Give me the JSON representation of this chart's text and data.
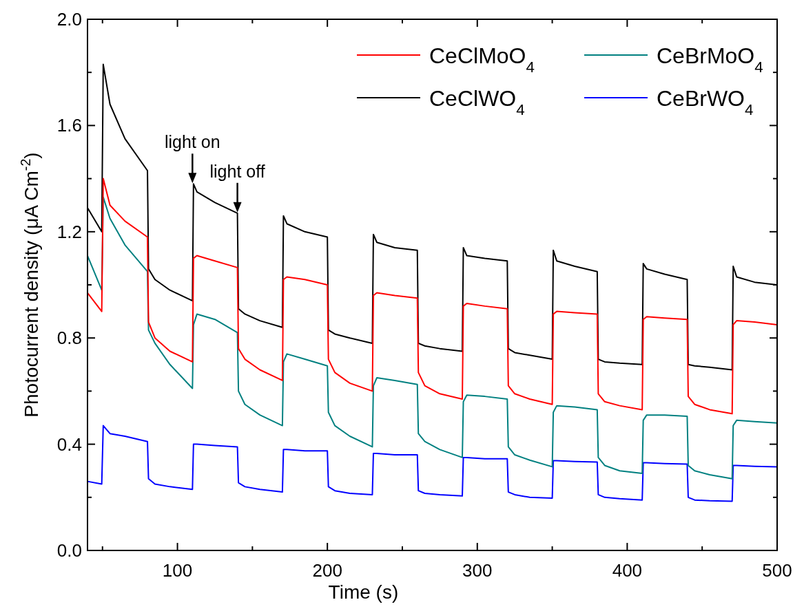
{
  "chart_data": {
    "type": "line",
    "xlabel": "Time (s)",
    "ylabel": "Photocurrent density (μA Cm$^{-2}$)",
    "xlim": [
      40,
      500
    ],
    "ylim": [
      0,
      2
    ],
    "xticks": [
      {
        "value": 50,
        "label": null
      },
      100,
      {
        "value": 150,
        "label": null
      },
      200,
      {
        "value": 250,
        "label": null
      },
      300,
      {
        "value": 350,
        "label": null
      },
      400,
      {
        "value": 450,
        "label": null
      },
      500
    ],
    "yticks": [
      {
        "value": 0,
        "label": "0.0"
      },
      {
        "value": 0.2,
        "label": null
      },
      {
        "value": 0.4,
        "label": "0.4"
      },
      {
        "value": 0.6,
        "label": null
      },
      {
        "value": 0.8,
        "label": "0.8"
      },
      {
        "value": 1,
        "label": null
      },
      {
        "value": 1.2,
        "label": "1.2"
      },
      {
        "value": 1.4,
        "label": null
      },
      {
        "value": 1.6,
        "label": "1.6"
      },
      {
        "value": 1.8,
        "label": null
      },
      {
        "value": 2,
        "label": "2.0"
      }
    ],
    "grid": false,
    "legend": "top right",
    "marker": "none",
    "line_style": "solid",
    "x": [
      40,
      49.5,
      50.5,
      55,
      65,
      80,
      80.7,
      85,
      95,
      110,
      110.7,
      113,
      125,
      140,
      140.7,
      145,
      155,
      170,
      170.7,
      173,
      185,
      200,
      200.7,
      205,
      215,
      230,
      230.7,
      233,
      245,
      260,
      260.7,
      265,
      275,
      290,
      290.7,
      293,
      305,
      320,
      320.7,
      325,
      335,
      350,
      350.7,
      353,
      365,
      380,
      380.7,
      385,
      395,
      410,
      410.7,
      413,
      425,
      440,
      440.7,
      445,
      455,
      470,
      470.7,
      473,
      485,
      500
    ],
    "series": [
      {
        "name": "CeClMoO$_{4}$",
        "color": "#ff0000",
        "values": [
          0.97,
          0.9,
          1.4,
          1.3,
          1.24,
          1.18,
          0.86,
          0.8,
          0.75,
          0.71,
          1.1,
          1.11,
          1.09,
          1.065,
          0.76,
          0.72,
          0.68,
          0.64,
          1.02,
          1.03,
          1.02,
          1.0,
          0.72,
          0.67,
          0.63,
          0.6,
          0.96,
          0.97,
          0.96,
          0.95,
          0.67,
          0.62,
          0.59,
          0.57,
          0.92,
          0.93,
          0.92,
          0.91,
          0.62,
          0.59,
          0.57,
          0.55,
          0.89,
          0.9,
          0.895,
          0.89,
          0.59,
          0.56,
          0.545,
          0.53,
          0.87,
          0.88,
          0.875,
          0.87,
          0.58,
          0.55,
          0.53,
          0.515,
          0.85,
          0.865,
          0.86,
          0.85
        ]
      },
      {
        "name": "CeBrMoO$_{4}$",
        "color": "#008080",
        "values": [
          1.11,
          0.98,
          1.33,
          1.25,
          1.15,
          1.05,
          0.83,
          0.78,
          0.7,
          0.61,
          0.85,
          0.89,
          0.87,
          0.82,
          0.6,
          0.55,
          0.51,
          0.47,
          0.71,
          0.74,
          0.72,
          0.695,
          0.52,
          0.47,
          0.43,
          0.39,
          0.62,
          0.65,
          0.64,
          0.625,
          0.44,
          0.41,
          0.38,
          0.35,
          0.56,
          0.585,
          0.58,
          0.57,
          0.39,
          0.36,
          0.34,
          0.315,
          0.52,
          0.545,
          0.54,
          0.53,
          0.35,
          0.32,
          0.3,
          0.29,
          0.49,
          0.51,
          0.51,
          0.505,
          0.32,
          0.3,
          0.285,
          0.27,
          0.47,
          0.49,
          0.485,
          0.48
        ]
      },
      {
        "name": "CeClWO$_{4}$",
        "color": "#000000",
        "values": [
          1.29,
          1.2,
          1.83,
          1.68,
          1.55,
          1.43,
          1.06,
          1.02,
          0.98,
          0.94,
          1.38,
          1.35,
          1.31,
          1.27,
          0.91,
          0.89,
          0.865,
          0.84,
          1.26,
          1.23,
          1.2,
          1.18,
          0.83,
          0.815,
          0.8,
          0.78,
          1.19,
          1.16,
          1.14,
          1.13,
          0.78,
          0.77,
          0.76,
          0.75,
          1.14,
          1.11,
          1.1,
          1.09,
          0.76,
          0.745,
          0.735,
          0.72,
          1.13,
          1.09,
          1.07,
          1.05,
          0.72,
          0.71,
          0.705,
          0.7,
          1.08,
          1.06,
          1.04,
          1.02,
          0.7,
          0.695,
          0.69,
          0.68,
          1.07,
          1.03,
          1.01,
          1.0
        ]
      },
      {
        "name": "CeBrWO$_{4}$",
        "color": "#0000ff",
        "values": [
          0.26,
          0.25,
          0.47,
          0.44,
          0.43,
          0.41,
          0.27,
          0.25,
          0.24,
          0.23,
          0.4,
          0.4,
          0.395,
          0.39,
          0.255,
          0.24,
          0.23,
          0.22,
          0.38,
          0.38,
          0.375,
          0.375,
          0.24,
          0.225,
          0.215,
          0.21,
          0.365,
          0.365,
          0.36,
          0.36,
          0.225,
          0.215,
          0.21,
          0.205,
          0.35,
          0.35,
          0.345,
          0.345,
          0.22,
          0.21,
          0.2,
          0.197,
          0.338,
          0.338,
          0.335,
          0.333,
          0.21,
          0.2,
          0.195,
          0.19,
          0.33,
          0.33,
          0.327,
          0.325,
          0.2,
          0.19,
          0.187,
          0.185,
          0.32,
          0.32,
          0.317,
          0.315
        ]
      }
    ],
    "annotations": [
      {
        "text": "light on",
        "x": 110,
        "y": 1.38
      },
      {
        "text": "light off",
        "x": 140,
        "y": 1.27
      }
    ]
  }
}
